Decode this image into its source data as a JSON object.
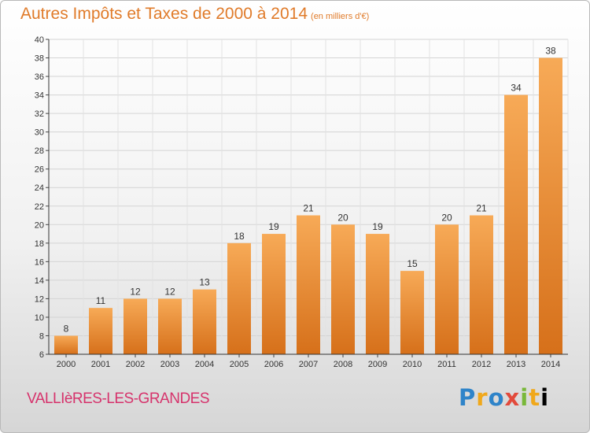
{
  "title": "Autres Impôts et Taxes de 2000 à 2014",
  "title_unit": "(en milliers d'€)",
  "commune": "VALLIèRES-LES-GRANDES",
  "logo": {
    "text": "Proxiti",
    "letters": [
      "P",
      "r",
      "o",
      "x",
      "i",
      "t",
      "i"
    ]
  },
  "colors": {
    "bar_light": "#f7a954",
    "bar_dark": "#d46f17",
    "title": "#e07b2a",
    "commune": "#d6336c"
  },
  "chart_data": {
    "type": "bar",
    "title": "Autres Impôts et Taxes de 2000 à 2014",
    "categories": [
      "2000",
      "2001",
      "2002",
      "2003",
      "2004",
      "2005",
      "2006",
      "2007",
      "2008",
      "2009",
      "2010",
      "2011",
      "2012",
      "2013",
      "2014"
    ],
    "values": [
      8,
      11,
      12,
      12,
      13,
      18,
      19,
      21,
      20,
      19,
      15,
      20,
      21,
      34,
      38
    ],
    "ylim": [
      6,
      40
    ],
    "yticks": [
      6,
      8,
      10,
      12,
      14,
      16,
      18,
      20,
      22,
      24,
      26,
      28,
      30,
      32,
      34,
      36,
      38,
      40
    ],
    "grid": true
  }
}
